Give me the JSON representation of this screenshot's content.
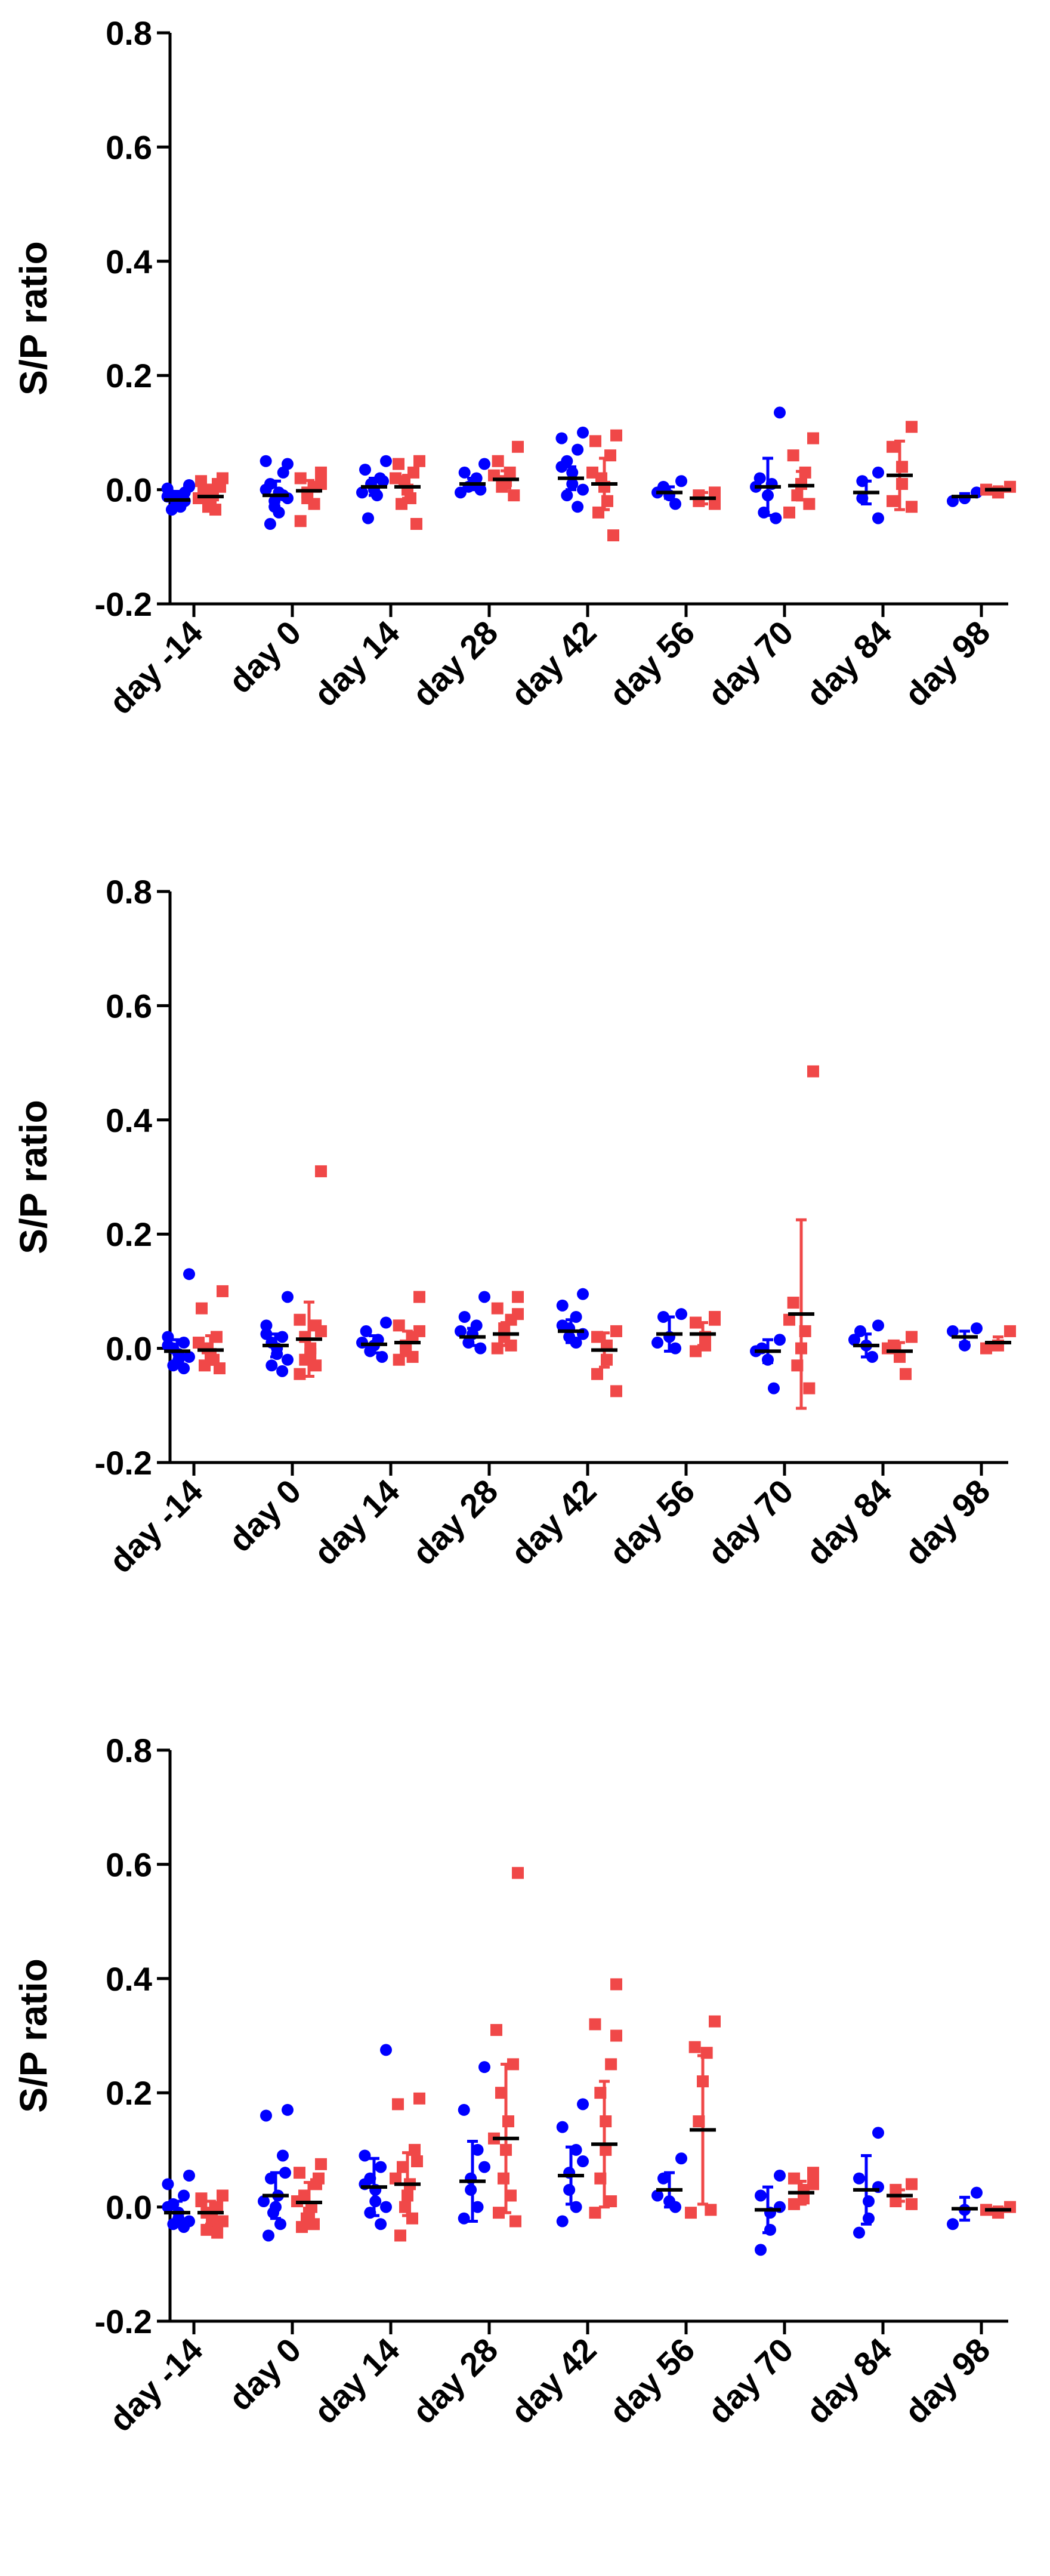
{
  "chart_data": [
    {
      "type": "scatter",
      "title": "",
      "xlabel": "",
      "ylabel": "S/P ratio",
      "ylim": [
        -0.2,
        0.8
      ],
      "yticks": [
        "-0.2",
        "0.0",
        "0.2",
        "0.4",
        "0.6",
        "0.8"
      ],
      "categories": [
        "day -14",
        "day 0",
        "day 14",
        "day 28",
        "day 42",
        "day 56",
        "day 70",
        "day 84",
        "day 98"
      ],
      "grid": false,
      "series": [
        {
          "marker": "circle",
          "color": "#0000ff",
          "groups": [
            {
              "mean": -0.018,
              "sd": 0.015,
              "points": [
                0.008,
                0.002,
                -0.005,
                -0.01,
                -0.015,
                -0.02,
                -0.025,
                -0.03,
                -0.035,
                -0.02,
                -0.012,
                0.005
              ]
            },
            {
              "mean": -0.01,
              "sd": 0.025,
              "points": [
                0.045,
                0.05,
                0.03,
                0.01,
                -0.005,
                -0.02,
                -0.03,
                -0.04,
                -0.06,
                -0.01,
                0.0,
                -0.015
              ]
            },
            {
              "mean": 0.005,
              "sd": 0.015,
              "points": [
                0.05,
                0.035,
                0.02,
                0.01,
                0.0,
                -0.01,
                -0.05,
                0.015,
                -0.005
              ]
            },
            {
              "mean": 0.01,
              "sd": 0.01,
              "points": [
                0.045,
                0.03,
                0.02,
                0.01,
                0.005,
                0.0,
                -0.005
              ]
            },
            {
              "mean": 0.02,
              "sd": 0.02,
              "points": [
                0.1,
                0.09,
                0.07,
                0.05,
                0.03,
                0.01,
                -0.01,
                -0.03,
                0.04,
                0.0
              ]
            },
            {
              "mean": -0.005,
              "sd": 0.01,
              "points": [
                0.015,
                0.005,
                -0.01,
                -0.025,
                -0.005
              ]
            },
            {
              "mean": 0.005,
              "sd": 0.05,
              "points": [
                0.135,
                0.02,
                0.01,
                -0.01,
                -0.04,
                -0.05,
                0.005
              ]
            },
            {
              "mean": -0.005,
              "sd": 0.02,
              "points": [
                0.03,
                0.015,
                -0.015,
                -0.05
              ]
            },
            {
              "mean": -0.012,
              "sd": 0.005,
              "points": [
                -0.005,
                -0.015,
                -0.02
              ]
            }
          ]
        },
        {
          "marker": "square",
          "color": "#f04848",
          "groups": [
            {
              "mean": -0.012,
              "sd": 0.02,
              "points": [
                0.02,
                0.015,
                0.01,
                0.0,
                -0.01,
                -0.02,
                -0.03,
                -0.035,
                -0.005,
                0.005,
                -0.015
              ]
            },
            {
              "mean": -0.002,
              "sd": 0.018,
              "points": [
                0.03,
                0.02,
                0.005,
                -0.005,
                -0.015,
                -0.025,
                -0.055,
                0.01
              ]
            },
            {
              "mean": 0.005,
              "sd": 0.02,
              "points": [
                0.05,
                0.045,
                0.03,
                0.015,
                0.0,
                -0.015,
                -0.025,
                -0.06,
                0.02
              ]
            },
            {
              "mean": 0.018,
              "sd": 0.015,
              "points": [
                0.075,
                0.05,
                0.03,
                0.015,
                0.005,
                -0.01,
                0.025
              ]
            },
            {
              "mean": 0.01,
              "sd": 0.045,
              "points": [
                0.095,
                0.085,
                0.06,
                0.02,
                0.005,
                -0.02,
                -0.04,
                -0.08,
                0.03
              ]
            },
            {
              "mean": -0.015,
              "sd": 0.01,
              "points": [
                -0.005,
                -0.01,
                -0.02,
                -0.025
              ]
            },
            {
              "mean": 0.007,
              "sd": 0.025,
              "points": [
                0.09,
                0.06,
                0.03,
                0.01,
                -0.01,
                -0.025,
                -0.04
              ]
            },
            {
              "mean": 0.025,
              "sd": 0.06,
              "points": [
                0.11,
                0.075,
                0.04,
                0.01,
                -0.02,
                -0.03
              ]
            },
            {
              "mean": 0.0,
              "sd": 0.005,
              "points": [
                0.005,
                -0.005,
                0.0
              ]
            }
          ]
        }
      ]
    },
    {
      "type": "scatter",
      "title": "",
      "xlabel": "",
      "ylabel": "S/P ratio",
      "ylim": [
        -0.2,
        0.8
      ],
      "yticks": [
        "-0.2",
        "0.0",
        "0.2",
        "0.4",
        "0.6",
        "0.8"
      ],
      "categories": [
        "day -14",
        "day 0",
        "day 14",
        "day 28",
        "day 42",
        "day 56",
        "day 70",
        "day 84",
        "day 98"
      ],
      "grid": false,
      "series": [
        {
          "marker": "circle",
          "color": "#0000ff",
          "groups": [
            {
              "mean": -0.005,
              "sd": 0.02,
              "points": [
                0.13,
                0.02,
                0.01,
                0.0,
                -0.01,
                -0.02,
                -0.03,
                -0.035,
                0.005,
                -0.015
              ]
            },
            {
              "mean": 0.005,
              "sd": 0.02,
              "points": [
                0.09,
                0.04,
                0.02,
                0.01,
                0.0,
                -0.01,
                -0.03,
                -0.04,
                0.025,
                -0.02
              ]
            },
            {
              "mean": 0.007,
              "sd": 0.015,
              "points": [
                0.045,
                0.03,
                0.015,
                0.005,
                -0.005,
                -0.015,
                0.01
              ]
            },
            {
              "mean": 0.02,
              "sd": 0.015,
              "points": [
                0.09,
                0.055,
                0.04,
                0.025,
                0.01,
                0.0,
                0.03
              ]
            },
            {
              "mean": 0.03,
              "sd": 0.02,
              "points": [
                0.095,
                0.075,
                0.055,
                0.035,
                0.02,
                0.01,
                0.04,
                0.025
              ]
            },
            {
              "mean": 0.025,
              "sd": 0.03,
              "points": [
                0.06,
                0.055,
                0.02,
                0.0,
                0.01
              ]
            },
            {
              "mean": -0.005,
              "sd": 0.02,
              "points": [
                0.015,
                0.0,
                -0.02,
                -0.07,
                -0.005
              ]
            },
            {
              "mean": 0.005,
              "sd": 0.02,
              "points": [
                0.04,
                0.03,
                0.005,
                -0.015,
                0.015
              ]
            },
            {
              "mean": 0.02,
              "sd": 0.01,
              "points": [
                0.035,
                0.005,
                0.03
              ]
            }
          ]
        },
        {
          "marker": "square",
          "color": "#f04848",
          "groups": [
            {
              "mean": -0.003,
              "sd": 0.025,
              "points": [
                0.1,
                0.07,
                0.02,
                0.0,
                -0.01,
                -0.02,
                -0.03,
                -0.035,
                0.01
              ]
            },
            {
              "mean": 0.016,
              "sd": 0.065,
              "points": [
                0.31,
                0.05,
                0.04,
                0.02,
                0.0,
                -0.01,
                -0.02,
                -0.03,
                -0.045,
                0.03
              ]
            },
            {
              "mean": 0.01,
              "sd": 0.02,
              "points": [
                0.09,
                0.04,
                0.02,
                0.005,
                -0.005,
                -0.015,
                -0.02,
                0.03
              ]
            },
            {
              "mean": 0.025,
              "sd": 0.02,
              "points": [
                0.09,
                0.07,
                0.05,
                0.035,
                0.02,
                0.005,
                0.0,
                0.06
              ]
            },
            {
              "mean": -0.003,
              "sd": 0.03,
              "points": [
                0.03,
                0.02,
                0.005,
                -0.02,
                -0.045,
                -0.075
              ]
            },
            {
              "mean": 0.025,
              "sd": 0.02,
              "points": [
                0.055,
                0.045,
                0.02,
                0.005,
                -0.005,
                0.05
              ]
            },
            {
              "mean": 0.06,
              "sd": 0.165,
              "points": [
                0.485,
                0.08,
                0.03,
                0.0,
                -0.03,
                -0.07,
                0.05
              ]
            },
            {
              "mean": -0.005,
              "sd": 0.015,
              "points": [
                0.02,
                0.005,
                -0.015,
                -0.045,
                0.0
              ]
            },
            {
              "mean": 0.01,
              "sd": 0.01,
              "points": [
                0.03,
                0.005,
                0.0
              ]
            }
          ]
        }
      ]
    },
    {
      "type": "scatter",
      "title": "",
      "xlabel": "",
      "ylabel": "S/P ratio",
      "ylim": [
        -0.2,
        0.8
      ],
      "yticks": [
        "-0.2",
        "0.0",
        "0.2",
        "0.4",
        "0.6",
        "0.8"
      ],
      "categories": [
        "day -14",
        "day 0",
        "day 14",
        "day 28",
        "day 42",
        "day 56",
        "day 70",
        "day 84",
        "day 98"
      ],
      "grid": false,
      "series": [
        {
          "marker": "circle",
          "color": "#0000ff",
          "groups": [
            {
              "mean": -0.01,
              "sd": 0.02,
              "points": [
                0.055,
                0.04,
                0.02,
                0.005,
                -0.01,
                -0.02,
                -0.03,
                -0.035,
                0.0,
                -0.025
              ]
            },
            {
              "mean": 0.02,
              "sd": 0.04,
              "points": [
                0.17,
                0.16,
                0.09,
                0.05,
                0.02,
                0.0,
                -0.01,
                -0.03,
                -0.05,
                0.06,
                0.01
              ]
            },
            {
              "mean": 0.035,
              "sd": 0.05,
              "points": [
                0.275,
                0.09,
                0.07,
                0.05,
                0.03,
                0.01,
                -0.01,
                -0.03,
                0.04,
                0.0
              ]
            },
            {
              "mean": 0.045,
              "sd": 0.07,
              "points": [
                0.245,
                0.17,
                0.1,
                0.05,
                0.03,
                0.0,
                -0.02,
                0.07
              ]
            },
            {
              "mean": 0.055,
              "sd": 0.05,
              "points": [
                0.18,
                0.14,
                0.1,
                0.06,
                0.03,
                0.0,
                -0.025,
                0.08
              ]
            },
            {
              "mean": 0.03,
              "sd": 0.03,
              "points": [
                0.085,
                0.05,
                0.01,
                0.0,
                0.02
              ]
            },
            {
              "mean": -0.005,
              "sd": 0.04,
              "points": [
                0.055,
                0.02,
                -0.01,
                -0.04,
                -0.075,
                0.0
              ]
            },
            {
              "mean": 0.03,
              "sd": 0.06,
              "points": [
                0.13,
                0.05,
                0.01,
                -0.02,
                -0.045,
                0.035
              ]
            },
            {
              "mean": -0.003,
              "sd": 0.02,
              "points": [
                0.025,
                -0.005,
                -0.03
              ]
            }
          ]
        },
        {
          "marker": "square",
          "color": "#f04848",
          "groups": [
            {
              "mean": -0.01,
              "sd": 0.02,
              "points": [
                0.02,
                0.01,
                0.0,
                -0.01,
                -0.02,
                -0.03,
                -0.04,
                -0.045,
                0.015,
                -0.025
              ]
            },
            {
              "mean": 0.008,
              "sd": 0.035,
              "points": [
                0.075,
                0.06,
                0.04,
                0.02,
                0.0,
                -0.01,
                -0.02,
                -0.03,
                -0.035,
                0.05,
                0.01
              ]
            },
            {
              "mean": 0.04,
              "sd": 0.055,
              "points": [
                0.19,
                0.18,
                0.1,
                0.07,
                0.04,
                0.02,
                0.0,
                -0.02,
                -0.05,
                0.08,
                0.05
              ]
            },
            {
              "mean": 0.12,
              "sd": 0.13,
              "points": [
                0.585,
                0.31,
                0.25,
                0.2,
                0.15,
                0.1,
                0.05,
                0.02,
                -0.01,
                -0.025,
                0.12
              ]
            },
            {
              "mean": 0.11,
              "sd": 0.11,
              "points": [
                0.39,
                0.32,
                0.25,
                0.2,
                0.15,
                0.1,
                0.05,
                0.01,
                -0.01,
                0.3
              ]
            },
            {
              "mean": 0.135,
              "sd": 0.13,
              "points": [
                0.325,
                0.28,
                0.27,
                0.22,
                0.15,
                -0.005,
                -0.01
              ]
            },
            {
              "mean": 0.025,
              "sd": 0.02,
              "points": [
                0.06,
                0.05,
                0.03,
                0.015,
                0.005,
                0.04
              ]
            },
            {
              "mean": 0.02,
              "sd": 0.01,
              "points": [
                0.04,
                0.03,
                0.01,
                0.005
              ]
            },
            {
              "mean": -0.005,
              "sd": 0.005,
              "points": [
                0.0,
                -0.01,
                -0.005
              ]
            }
          ]
        }
      ]
    }
  ]
}
